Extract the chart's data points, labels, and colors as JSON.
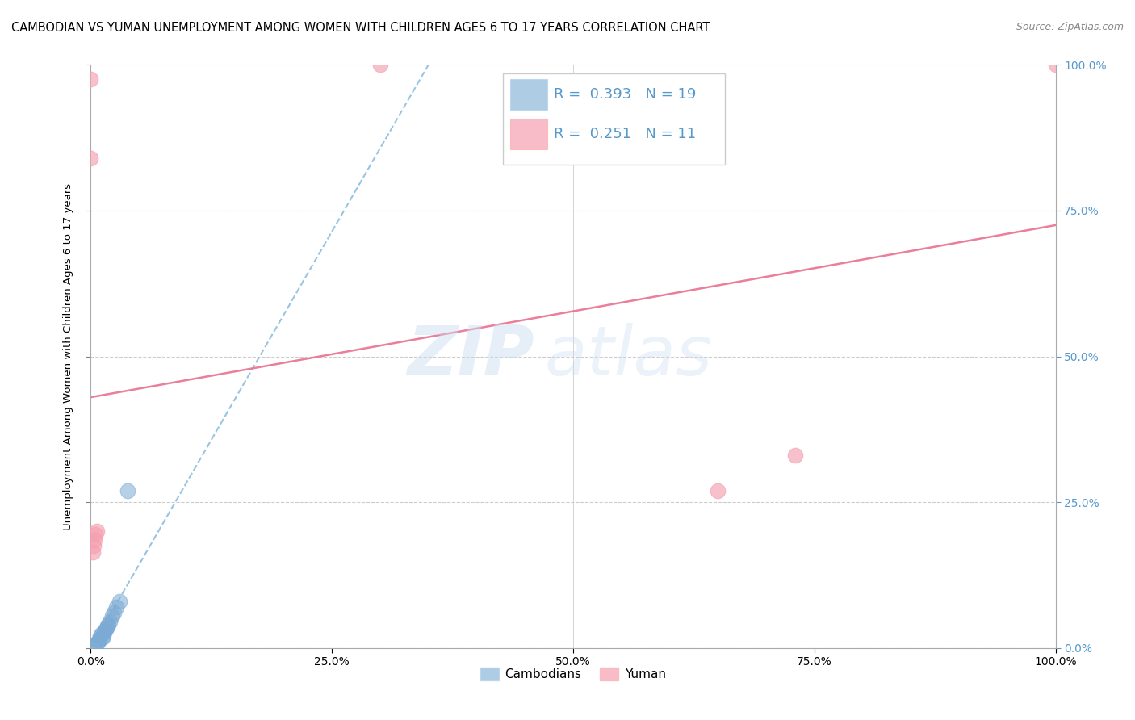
{
  "title": "CAMBODIAN VS YUMAN UNEMPLOYMENT AMONG WOMEN WITH CHILDREN AGES 6 TO 17 YEARS CORRELATION CHART",
  "source": "Source: ZipAtlas.com",
  "ylabel": "Unemployment Among Women with Children Ages 6 to 17 years",
  "watermark_zip": "ZIP",
  "watermark_atlas": "atlas",
  "xlim": [
    0,
    1.0
  ],
  "ylim": [
    0,
    1.0
  ],
  "xticks": [
    0.0,
    0.25,
    0.5,
    0.75,
    1.0
  ],
  "yticks": [
    0.0,
    0.25,
    0.5,
    0.75,
    1.0
  ],
  "xtick_labels": [
    "0.0%",
    "25.0%",
    "50.0%",
    "75.0%",
    "100.0%"
  ],
  "right_ytick_labels": [
    "0.0%",
    "25.0%",
    "50.0%",
    "75.0%",
    "100.0%"
  ],
  "cambodian_color": "#7BAAD4",
  "yuman_color": "#F4A0B0",
  "trend_cambodian_color": "#88BBDD",
  "trend_yuman_color": "#E87090",
  "legend_R_cambodian": "0.393",
  "legend_N_cambodian": "19",
  "legend_R_yuman": "0.251",
  "legend_N_yuman": "11",
  "cambodian_x": [
    0.005,
    0.007,
    0.008,
    0.009,
    0.01,
    0.011,
    0.012,
    0.013,
    0.014,
    0.015,
    0.016,
    0.017,
    0.018,
    0.02,
    0.022,
    0.024,
    0.026,
    0.03,
    0.038
  ],
  "cambodian_y": [
    0.005,
    0.01,
    0.012,
    0.015,
    0.02,
    0.025,
    0.018,
    0.022,
    0.028,
    0.03,
    0.035,
    0.038,
    0.04,
    0.045,
    0.055,
    0.06,
    0.07,
    0.08,
    0.27
  ],
  "yuman_x": [
    0.0,
    0.0,
    0.002,
    0.003,
    0.004,
    0.005,
    0.006,
    0.3,
    0.65,
    0.73,
    1.0
  ],
  "yuman_y": [
    0.975,
    0.84,
    0.165,
    0.175,
    0.185,
    0.195,
    0.2,
    1.0,
    0.27,
    0.33,
    1.0
  ],
  "cambodian_trend_x": [
    0.0,
    0.35
  ],
  "cambodian_trend_y": [
    0.0,
    1.0
  ],
  "yuman_trend_x": [
    0.0,
    1.0
  ],
  "yuman_trend_y": [
    0.43,
    0.725
  ],
  "title_fontsize": 10.5,
  "axis_label_fontsize": 9.5,
  "tick_fontsize": 10,
  "legend_fontsize": 13,
  "source_fontsize": 9,
  "dot_size": 180,
  "background_color": "#FFFFFF",
  "grid_color": "#CCCCCC",
  "right_tick_color": "#5599CC",
  "legend_text_color": "#5599CC"
}
